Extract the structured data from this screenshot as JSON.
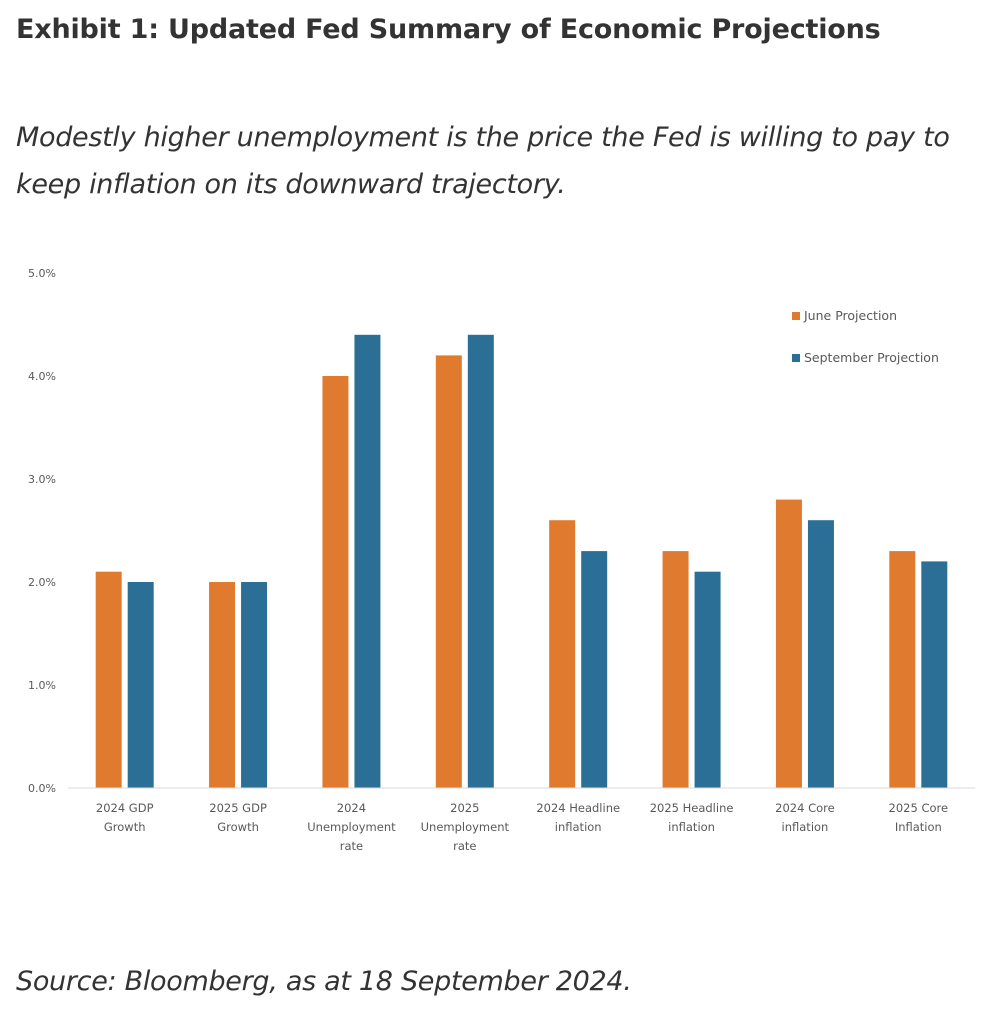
{
  "exhibit": {
    "title": "Exhibit 1: Updated Fed Summary of Economic Projections",
    "subtitle": "Modestly higher unemployment is the price the Fed is willing to pay to keep inflation on its downward trajectory.",
    "source": "Source: Bloomberg, as at 18 September 2024."
  },
  "chart_data": {
    "type": "bar",
    "title": "",
    "xlabel": "",
    "ylabel": "",
    "ylim": [
      0,
      5
    ],
    "yticks": [
      0,
      1,
      2,
      3,
      4,
      5
    ],
    "ytick_labels": [
      "0.0%",
      "1.0%",
      "2.0%",
      "3.0%",
      "4.0%",
      "5.0%"
    ],
    "grid": false,
    "legend_position": "top-right",
    "categories": [
      [
        "2024 GDP",
        "Growth"
      ],
      [
        "2025 GDP",
        "Growth"
      ],
      [
        "2024",
        "Unemployment",
        "rate"
      ],
      [
        "2025",
        "Unemployment",
        "rate"
      ],
      [
        "2024 Headline",
        "inflation"
      ],
      [
        "2025 Headline",
        "inflation"
      ],
      [
        "2024 Core",
        "inflation"
      ],
      [
        "2025 Core",
        "Inflation"
      ]
    ],
    "series": [
      {
        "name": "June Projection",
        "color": "#e07a2f",
        "values": [
          2.1,
          2.0,
          4.0,
          4.2,
          2.6,
          2.3,
          2.8,
          2.3
        ]
      },
      {
        "name": "September Projection",
        "color": "#2b6f96",
        "values": [
          2.0,
          2.0,
          4.4,
          4.4,
          2.3,
          2.1,
          2.6,
          2.2
        ]
      }
    ],
    "axis_color": "#d9d9d9"
  }
}
